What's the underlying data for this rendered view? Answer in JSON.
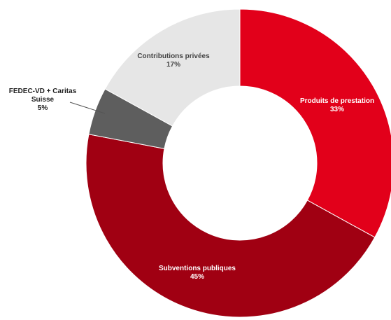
{
  "chart_data": {
    "type": "pie",
    "variant": "donut",
    "title": "",
    "legend": "none",
    "slices": [
      {
        "label_lines": [
          "Produits de prestation",
          "33%"
        ],
        "value": 33,
        "color": "#e2001a",
        "label_color": "#ffffff"
      },
      {
        "label_lines": [
          "Subventions publiques",
          "45%"
        ],
        "value": 45,
        "color": "#a00012",
        "label_color": "#ffffff"
      },
      {
        "label_lines": [
          "FEDEC-VD + Caritas",
          "Suisse",
          "5%"
        ],
        "value": 5,
        "color": "#5e5e5e",
        "label_color": "#222222"
      },
      {
        "label_lines": [
          "Contributions privées",
          "17%"
        ],
        "value": 17,
        "color": "#e6e6e6",
        "label_color": "#444444"
      }
    ]
  }
}
